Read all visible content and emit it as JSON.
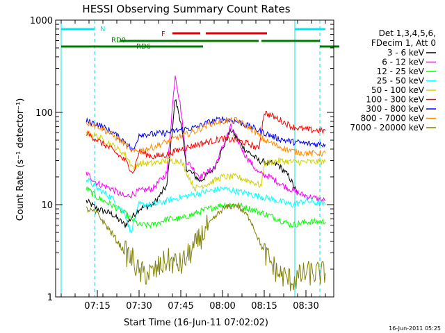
{
  "chart_data": {
    "type": "line",
    "title": "HESSI Observing Summary Count Rates",
    "xlabel": "Start Time (16-Jun-11 07:02:02)",
    "ylabel": "Count Rate (s⁻¹ detector⁻¹)",
    "yscale": "log",
    "ylim": [
      1,
      1000
    ],
    "xlim_minutes_after_0702": [
      -2,
      40
    ],
    "x_ticks": [
      "07:15",
      "07:30",
      "07:45",
      "08:00",
      "08:15",
      "08:30"
    ],
    "y_ticks": [
      "1",
      "10",
      "100",
      "1000"
    ],
    "footer": "16-Jun-2011 05:25",
    "legend_header": [
      "Det 1,3,4,5,6,",
      "FDecim 1, Att 0"
    ],
    "legend_position": "right",
    "flags": {
      "N_label": "N",
      "F_label": "F",
      "RD0_label": "RD0",
      "RD6_label": "RD6",
      "N_color": "#00e5ee",
      "F_color": "#e00000",
      "RD_color": "#007a00",
      "N_intervals": [
        [
          "07:02",
          "07:14"
        ],
        [
          "08:26",
          "08:37"
        ]
      ],
      "F_intervals": [
        [
          "07:42",
          "07:52"
        ],
        [
          "07:54",
          "08:16"
        ]
      ],
      "RD0_intervals": [
        [
          "07:23",
          "07:53"
        ],
        [
          "07:53",
          "08:13"
        ],
        [
          "08:14",
          "08:35"
        ]
      ],
      "RD6_intervals": [
        [
          "07:02",
          "07:53"
        ],
        [
          "08:35",
          "08:42"
        ]
      ]
    },
    "vertical_markers": {
      "solid": [
        "07:02",
        "08:26"
      ],
      "dashed": [
        "07:14",
        "08:35"
      ],
      "color": "#00e5ee"
    },
    "series": [
      {
        "name": "3 - 6 keV",
        "color": "#000000",
        "points": [
          [
            "07:11",
            11
          ],
          [
            "07:15",
            9
          ],
          [
            "07:20",
            8
          ],
          [
            "07:25",
            6
          ],
          [
            "07:30",
            9
          ],
          [
            "07:35",
            10
          ],
          [
            "07:40",
            16
          ],
          [
            "07:43",
            140
          ],
          [
            "07:45",
            80
          ],
          [
            "07:47",
            25
          ],
          [
            "07:52",
            18
          ],
          [
            "07:57",
            25
          ],
          [
            "08:03",
            65
          ],
          [
            "08:08",
            40
          ],
          [
            "08:13",
            30
          ],
          [
            "08:17",
            28
          ],
          [
            "08:20",
            27
          ],
          [
            "08:24",
            20
          ],
          [
            "08:27",
            13
          ]
        ]
      },
      {
        "name": "6 - 12 keV",
        "color": "#ff00ff",
        "points": [
          [
            "07:11",
            22
          ],
          [
            "07:15",
            17
          ],
          [
            "07:20",
            15
          ],
          [
            "07:25",
            12
          ],
          [
            "07:30",
            14
          ],
          [
            "07:35",
            15
          ],
          [
            "07:40",
            22
          ],
          [
            "07:43",
            260
          ],
          [
            "07:45",
            110
          ],
          [
            "07:47",
            30
          ],
          [
            "07:52",
            20
          ],
          [
            "07:57",
            25
          ],
          [
            "08:03",
            70
          ],
          [
            "08:08",
            35
          ],
          [
            "08:13",
            22
          ],
          [
            "08:17",
            20
          ],
          [
            "08:22",
            16
          ],
          [
            "08:28",
            13
          ],
          [
            "08:37",
            11
          ]
        ]
      },
      {
        "name": "12 - 25 keV",
        "color": "#00ff00",
        "points": [
          [
            "07:11",
            15
          ],
          [
            "07:15",
            12
          ],
          [
            "07:20",
            10
          ],
          [
            "07:25",
            8
          ],
          [
            "07:30",
            6
          ],
          [
            "07:35",
            6
          ],
          [
            "07:40",
            7
          ],
          [
            "07:45",
            7
          ],
          [
            "07:50",
            8
          ],
          [
            "07:55",
            9
          ],
          [
            "08:00",
            10
          ],
          [
            "08:05",
            10
          ],
          [
            "08:10",
            9
          ],
          [
            "08:15",
            8
          ],
          [
            "08:20",
            7
          ],
          [
            "08:25",
            6
          ],
          [
            "08:30",
            6.5
          ],
          [
            "08:37",
            6.5
          ]
        ]
      },
      {
        "name": "25 - 50 keV",
        "color": "#00ffff",
        "points": [
          [
            "07:11",
            19
          ],
          [
            "07:15",
            15
          ],
          [
            "07:20",
            12
          ],
          [
            "07:25",
            8
          ],
          [
            "07:27",
            5
          ],
          [
            "07:30",
            10
          ],
          [
            "07:35",
            10
          ],
          [
            "07:40",
            11
          ],
          [
            "07:45",
            12
          ],
          [
            "07:50",
            13
          ],
          [
            "07:55",
            14
          ],
          [
            "08:00",
            15
          ],
          [
            "08:05",
            14
          ],
          [
            "08:10",
            13
          ],
          [
            "08:15",
            12
          ],
          [
            "08:20",
            11
          ],
          [
            "08:25",
            10
          ],
          [
            "08:30",
            11
          ],
          [
            "08:37",
            10
          ]
        ]
      },
      {
        "name": "50 - 100 keV",
        "color": "#d0d000",
        "points": [
          [
            "07:11",
            60
          ],
          [
            "07:15",
            55
          ],
          [
            "07:20",
            45
          ],
          [
            "07:25",
            35
          ],
          [
            "07:28",
            25
          ],
          [
            "07:30",
            28
          ],
          [
            "07:35",
            28
          ],
          [
            "07:40",
            30
          ],
          [
            "07:45",
            30
          ],
          [
            "07:50",
            15
          ],
          [
            "07:55",
            17
          ],
          [
            "08:00",
            20
          ],
          [
            "08:05",
            20
          ],
          [
            "08:10",
            18
          ],
          [
            "08:14",
            16
          ],
          [
            "08:15",
            28
          ],
          [
            "08:20",
            30
          ],
          [
            "08:25",
            29
          ],
          [
            "08:30",
            29
          ],
          [
            "08:37",
            29
          ]
        ]
      },
      {
        "name": "100 - 300 keV",
        "color": "#ff0000",
        "points": [
          [
            "07:11",
            60
          ],
          [
            "07:15",
            50
          ],
          [
            "07:20",
            40
          ],
          [
            "07:25",
            30
          ],
          [
            "07:28",
            22
          ],
          [
            "07:30",
            38
          ],
          [
            "07:35",
            33
          ],
          [
            "07:40",
            35
          ],
          [
            "07:45",
            40
          ],
          [
            "07:50",
            44
          ],
          [
            "07:55",
            48
          ],
          [
            "08:00",
            52
          ],
          [
            "08:05",
            50
          ],
          [
            "08:10",
            45
          ],
          [
            "08:13",
            40
          ],
          [
            "08:15",
            100
          ],
          [
            "08:20",
            85
          ],
          [
            "08:25",
            70
          ],
          [
            "08:30",
            65
          ],
          [
            "08:37",
            63
          ]
        ]
      },
      {
        "name": "300 - 800 keV",
        "color": "#0000ff",
        "points": [
          [
            "07:11",
            80
          ],
          [
            "07:15",
            75
          ],
          [
            "07:20",
            62
          ],
          [
            "07:25",
            48
          ],
          [
            "07:28",
            38
          ],
          [
            "07:30",
            58
          ],
          [
            "07:35",
            58
          ],
          [
            "07:40",
            60
          ],
          [
            "07:45",
            65
          ],
          [
            "07:50",
            68
          ],
          [
            "07:55",
            78
          ],
          [
            "08:00",
            85
          ],
          [
            "08:05",
            80
          ],
          [
            "08:10",
            70
          ],
          [
            "08:15",
            60
          ],
          [
            "08:20",
            52
          ],
          [
            "08:25",
            48
          ],
          [
            "08:30",
            46
          ],
          [
            "08:37",
            45
          ]
        ]
      },
      {
        "name": "800 - 7000 keV",
        "color": "#ff8c00",
        "points": [
          [
            "07:11",
            78
          ],
          [
            "07:15",
            72
          ],
          [
            "07:20",
            58
          ],
          [
            "07:25",
            45
          ],
          [
            "07:28",
            37
          ],
          [
            "07:30",
            38
          ],
          [
            "07:35",
            42
          ],
          [
            "07:40",
            48
          ],
          [
            "07:45",
            55
          ],
          [
            "07:50",
            62
          ],
          [
            "07:55",
            75
          ],
          [
            "08:00",
            80
          ],
          [
            "08:05",
            82
          ],
          [
            "08:10",
            68
          ],
          [
            "08:15",
            50
          ],
          [
            "08:20",
            43
          ],
          [
            "08:25",
            38
          ],
          [
            "08:30",
            36
          ],
          [
            "08:37",
            36
          ]
        ]
      },
      {
        "name": "7000 - 20000 keV",
        "color": "#808000",
        "points": [
          [
            "07:11",
            9
          ],
          [
            "07:15",
            8
          ],
          [
            "07:20",
            5
          ],
          [
            "07:25",
            3
          ],
          [
            "07:28",
            2.5
          ],
          [
            "07:30",
            1.8
          ],
          [
            "07:35",
            1.8
          ],
          [
            "07:40",
            2.5
          ],
          [
            "07:45",
            2.2
          ],
          [
            "07:50",
            3.5
          ],
          [
            "07:55",
            6
          ],
          [
            "08:00",
            9
          ],
          [
            "08:05",
            10
          ],
          [
            "08:10",
            7
          ],
          [
            "08:15",
            3
          ],
          [
            "08:20",
            1.8
          ],
          [
            "08:25",
            1.5
          ],
          [
            "08:30",
            1.8
          ],
          [
            "08:37",
            1.8
          ]
        ]
      }
    ]
  }
}
